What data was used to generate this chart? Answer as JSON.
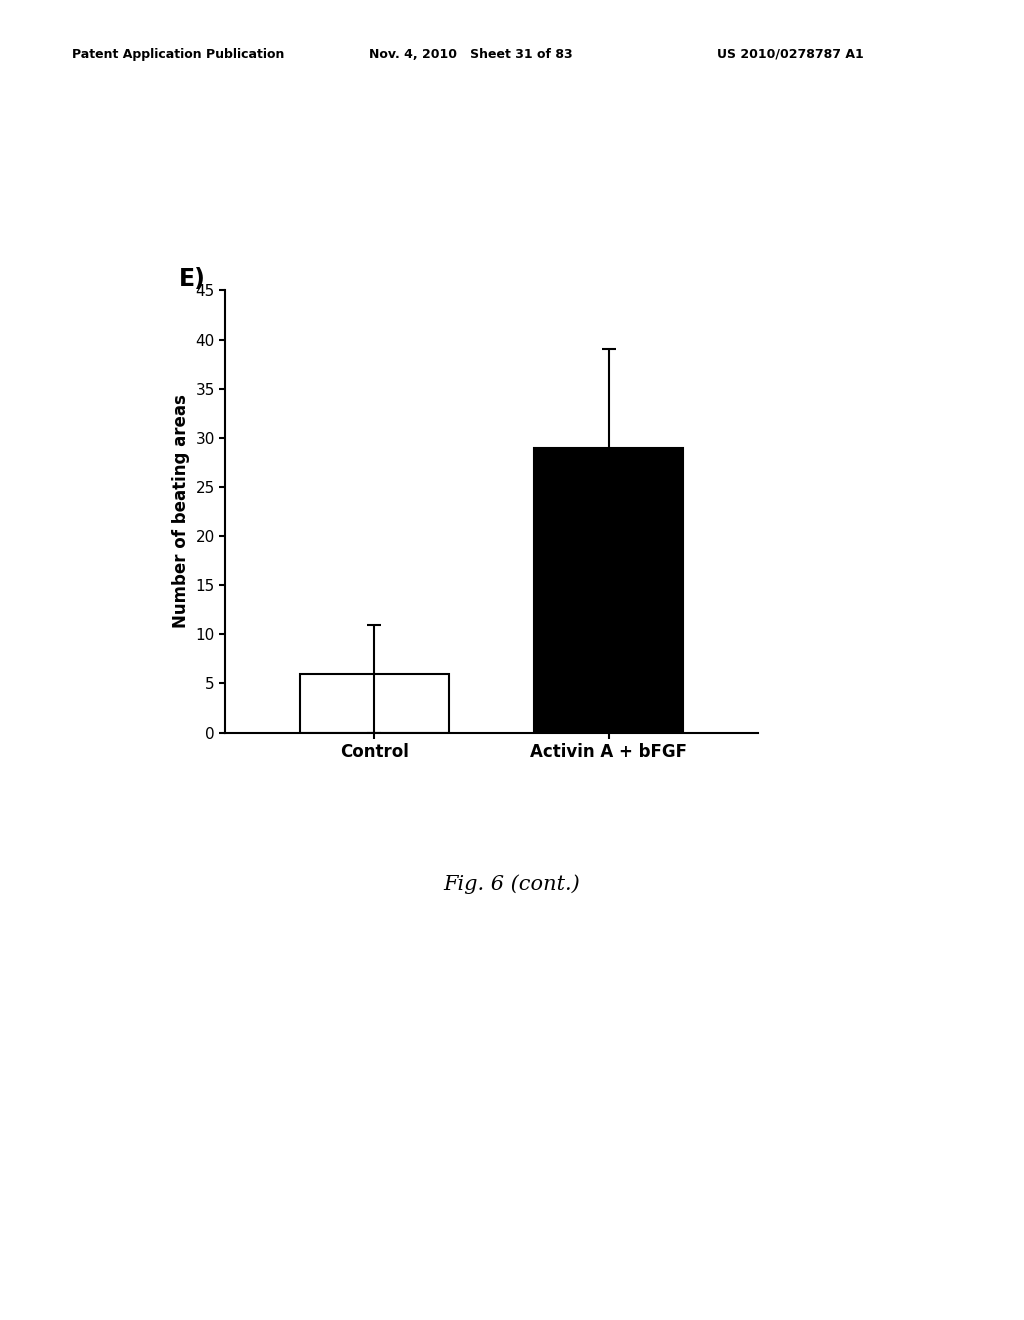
{
  "header_left": "Patent Application Publication",
  "header_mid": "Nov. 4, 2010   Sheet 31 of 83",
  "header_right": "US 2010/0278787 A1",
  "panel_label": "E)",
  "categories": [
    "Control",
    "Activin A + bFGF"
  ],
  "values": [
    6,
    29
  ],
  "errors_up": [
    5,
    10
  ],
  "errors_down": [
    6,
    10
  ],
  "bar_colors": [
    "#ffffff",
    "#000000"
  ],
  "bar_edgecolors": [
    "#000000",
    "#000000"
  ],
  "ylabel": "Number of beating areas",
  "ylim": [
    0,
    45
  ],
  "yticks": [
    0,
    5,
    10,
    15,
    20,
    25,
    30,
    35,
    40,
    45
  ],
  "caption": "Fig. 6 (cont.)",
  "background_color": "#ffffff",
  "bar_width": 0.28,
  "tick_fontsize": 11,
  "label_fontsize": 12,
  "header_fontsize": 9,
  "caption_fontsize": 15,
  "panel_label_fontsize": 17,
  "x_positions": [
    0.28,
    0.72
  ],
  "xlim": [
    0,
    1.0
  ]
}
